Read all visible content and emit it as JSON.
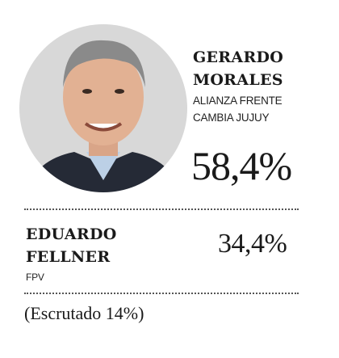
{
  "winner": {
    "name_lines": [
      "GERARDO",
      "MORALES"
    ],
    "party_lines": [
      "ALIANZA FRENTE",
      "CAMBIA JUJUY"
    ],
    "percentage": "58,4%"
  },
  "runner_up": {
    "name_lines": [
      "EDUARDO",
      "FELLNER"
    ],
    "party": "FPV",
    "percentage": "34,4%"
  },
  "note": "(Escrutado 14%)"
}
